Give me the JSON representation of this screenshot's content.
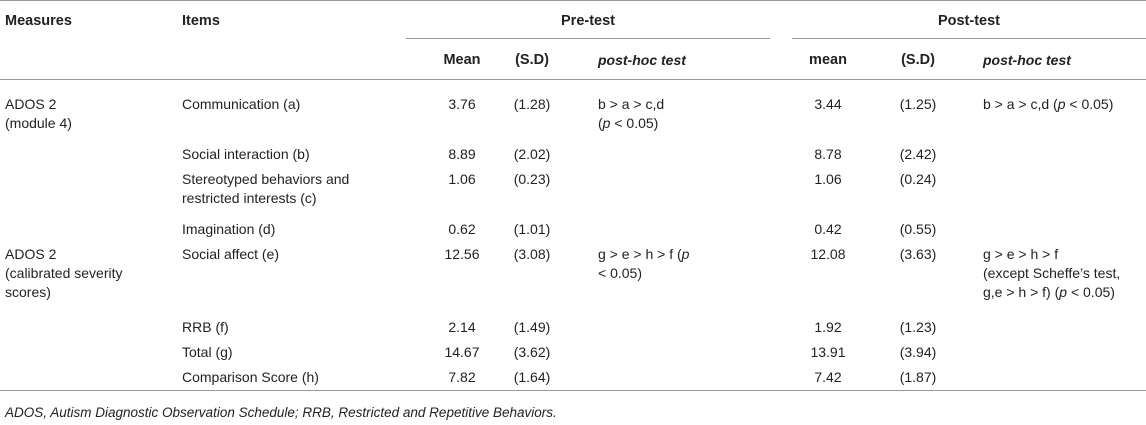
{
  "header": {
    "measures": "Measures",
    "items": "Items",
    "pre_test": "Pre-test",
    "post_test": "Post-test",
    "pre_mean": "Mean",
    "pre_sd": "(S.D)",
    "pre_posthoc": "post-hoc test",
    "post_mean": "mean",
    "post_sd": "(S.D)",
    "post_posthoc": "post-hoc test"
  },
  "groups": [
    {
      "measure": "ADOS 2\n(module 4)"
    },
    {
      "measure": "ADOS 2\n(calibrated severity\nscores)"
    }
  ],
  "rows": [
    {
      "item": "Communication (a)",
      "pre_mean": "3.76",
      "pre_sd": "(1.28)",
      "post_mean": "3.44",
      "post_sd": "(1.25)"
    },
    {
      "item": "Social interaction (b)",
      "pre_mean": "8.89",
      "pre_sd": "(2.02)",
      "post_mean": "8.78",
      "post_sd": "(2.42)"
    },
    {
      "item": "Stereotyped behaviors and\nrestricted interests (c)",
      "pre_mean": "1.06",
      "pre_sd": "(0.23)",
      "post_mean": "1.06",
      "post_sd": "(0.24)"
    },
    {
      "item": "Imagination (d)",
      "pre_mean": "0.62",
      "pre_sd": "(1.01)",
      "post_mean": "0.42",
      "post_sd": "(0.55)"
    },
    {
      "item": "Social affect (e)",
      "pre_mean": "12.56",
      "pre_sd": "(3.08)",
      "post_mean": "12.08",
      "post_sd": "(3.63)"
    },
    {
      "item": "RRB (f)",
      "pre_mean": "2.14",
      "pre_sd": "(1.49)",
      "post_mean": "1.92",
      "post_sd": "(1.23)"
    },
    {
      "item": "Total (g)",
      "pre_mean": "14.67",
      "pre_sd": "(3.62)",
      "post_mean": "13.91",
      "post_sd": "(3.94)"
    },
    {
      "item": "Comparison Score (h)",
      "pre_mean": "7.82",
      "pre_sd": "(1.64)",
      "post_mean": "7.42",
      "post_sd": "(1.87)"
    }
  ],
  "posthoc": {
    "g1_pre_a": "b > a > c,d",
    "g1_pre_b": "(",
    "g1_pre_p": "p",
    "g1_pre_c": " < 0.05)",
    "g1_post_a": "b > a > c,d (",
    "g1_post_p": "p",
    "g1_post_c": " < 0.05)",
    "g2_pre_a": "g > e > h > f (",
    "g2_pre_p": "p",
    "g2_pre_c": "< 0.05)",
    "g2_post_a": "g > e > h > f\n(except Scheffe’s test,\ng,e > h > f) (",
    "g2_post_p": "p",
    "g2_post_c": " < 0.05)"
  },
  "footnote": "ADOS, Autism Diagnostic Observation Schedule; RRB, Restricted and Repetitive Behaviors."
}
